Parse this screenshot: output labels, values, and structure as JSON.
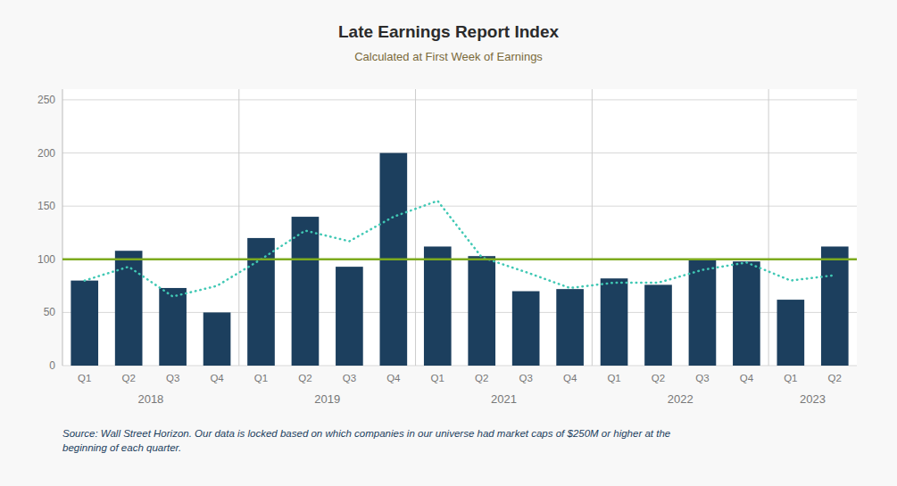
{
  "chart_data": {
    "type": "bar",
    "title": "Late Earnings Report Index",
    "subtitle": "Calculated at First Week of Earnings",
    "source": "Source: Wall Street Horizon. Our data is locked based on which companies in our universe had market caps of $250M or higher at the\nbeginning of each quarter.",
    "categories": [
      "Q1",
      "Q2",
      "Q3",
      "Q4",
      "Q1",
      "Q2",
      "Q3",
      "Q4",
      "Q1",
      "Q2",
      "Q3",
      "Q4",
      "Q1",
      "Q2",
      "Q3",
      "Q4",
      "Q1",
      "Q2"
    ],
    "groups": [
      {
        "label": "2018",
        "start": 0,
        "end": 3
      },
      {
        "label": "2019",
        "start": 4,
        "end": 7
      },
      {
        "label": "2021",
        "start": 8,
        "end": 11
      },
      {
        "label": "2022",
        "start": 12,
        "end": 15
      },
      {
        "label": "2023",
        "start": 16,
        "end": 17
      }
    ],
    "series": [
      {
        "type": "bar",
        "color": "#1c3f5e",
        "values": [
          80,
          108,
          73,
          50,
          120,
          140,
          93,
          200,
          112,
          103,
          70,
          72,
          82,
          76,
          100,
          98,
          62,
          112
        ]
      },
      {
        "type": "line",
        "color": "#40c8b4",
        "line_style": "dotted",
        "values": [
          80,
          93,
          65,
          75,
          100,
          127,
          117,
          140,
          155,
          102,
          88,
          73,
          78,
          78,
          90,
          97,
          80,
          85
        ]
      }
    ],
    "reference_line": {
      "value": 100,
      "color": "#7daa1e"
    },
    "ylim": [
      0,
      260
    ],
    "yticks": [
      0,
      50,
      100,
      150,
      200,
      250
    ],
    "grid": true
  }
}
